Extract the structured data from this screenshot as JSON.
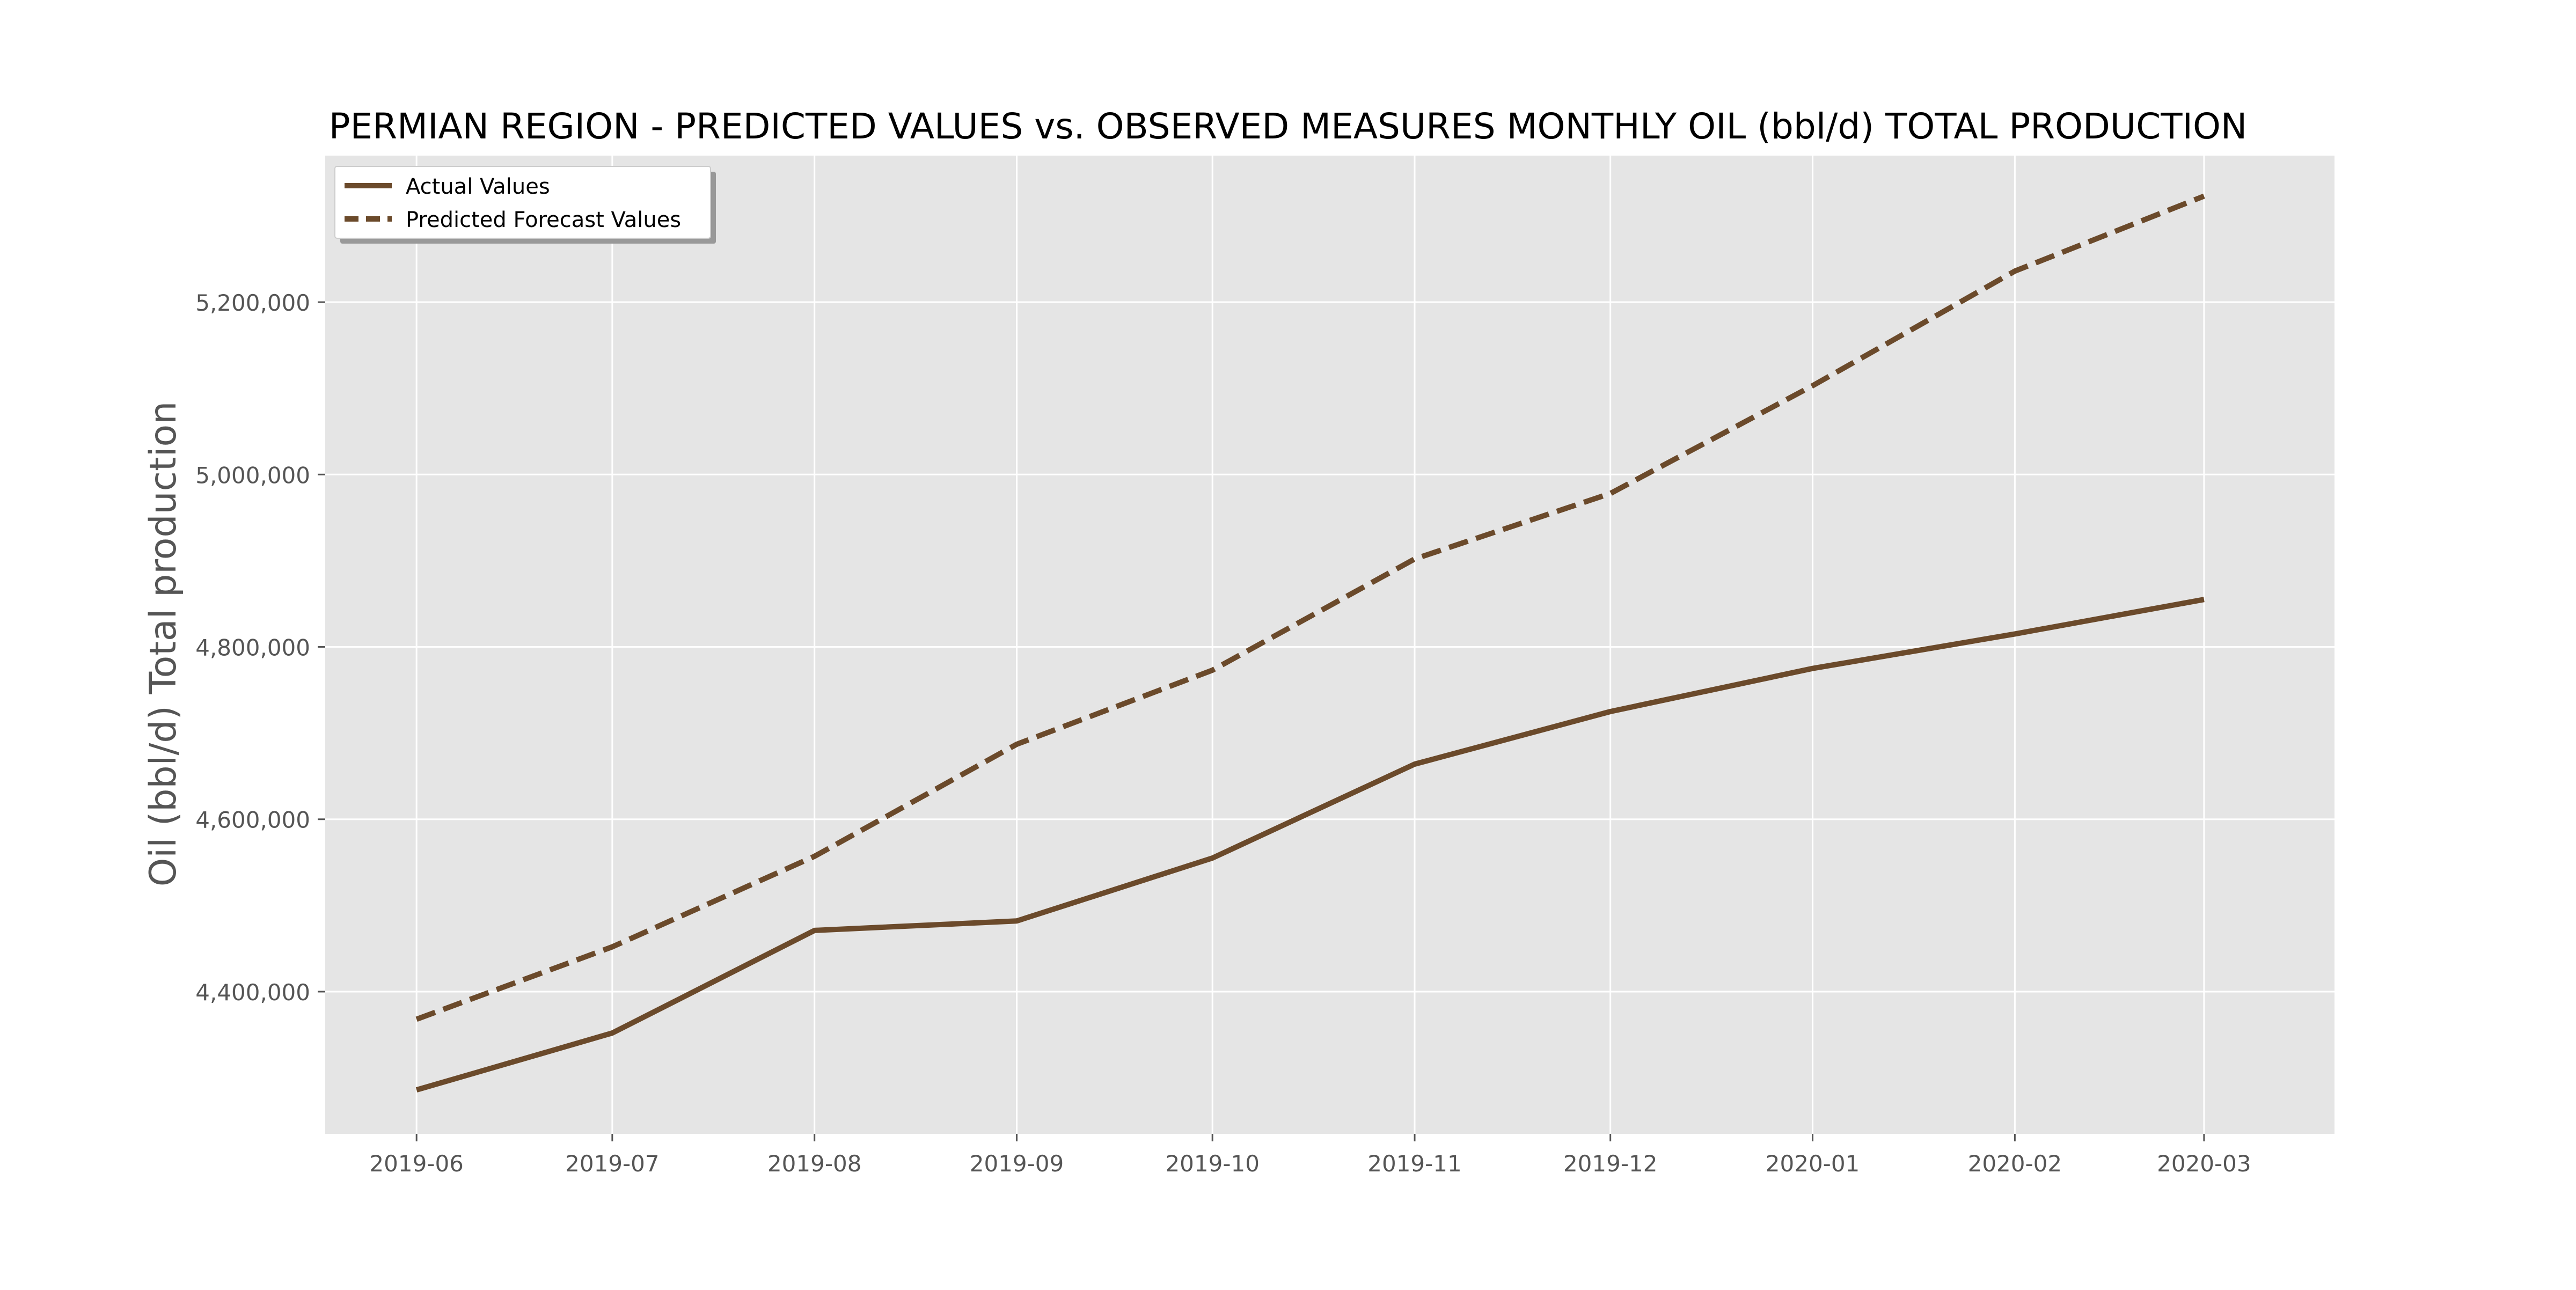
{
  "chart_data": {
    "type": "line",
    "title": "PERMIAN REGION - PREDICTED VALUES vs. OBSERVED MEASURES MONTHLY OIL (bbl/d) TOTAL PRODUCTION",
    "xlabel": "",
    "ylabel": "Oil (bbl/d) Total production",
    "x": [
      "2019-06-01",
      "2019-07-01",
      "2019-08-01",
      "2019-09-01",
      "2019-10-01",
      "2019-11-01",
      "2019-12-01",
      "2020-01-01",
      "2020-02-01",
      "2020-03-01"
    ],
    "x_tick_labels": [
      "2019-06",
      "2019-07",
      "2019-08",
      "2019-09",
      "2019-10",
      "2019-11",
      "2019-12",
      "2020-01",
      "2020-02",
      "2020-03"
    ],
    "xlim": [
      "2019-05-18",
      "2020-03-21"
    ],
    "ylim": [
      4235000,
      5370000
    ],
    "y_ticks": [
      4400000,
      4600000,
      4800000,
      5000000,
      5200000
    ],
    "y_tick_labels": [
      "4,400,000",
      "4,600,000",
      "4,800,000",
      "5,000,000",
      "5,200,000"
    ],
    "grid": true,
    "legend_position": "top-left",
    "series": [
      {
        "name": "Actual Values",
        "style": "solid",
        "color": "#6b4a2b",
        "values": [
          4286000,
          4352000,
          4471000,
          4482000,
          4555000,
          4664000,
          4725000,
          4775000,
          4815000,
          4855000
        ]
      },
      {
        "name": "Predicted Forecast Values",
        "style": "dashed",
        "color": "#6b4a2b",
        "values": [
          4368000,
          4452000,
          4557000,
          4687000,
          4773000,
          4902000,
          4978000,
          5103000,
          5236000,
          5323000
        ]
      }
    ]
  }
}
